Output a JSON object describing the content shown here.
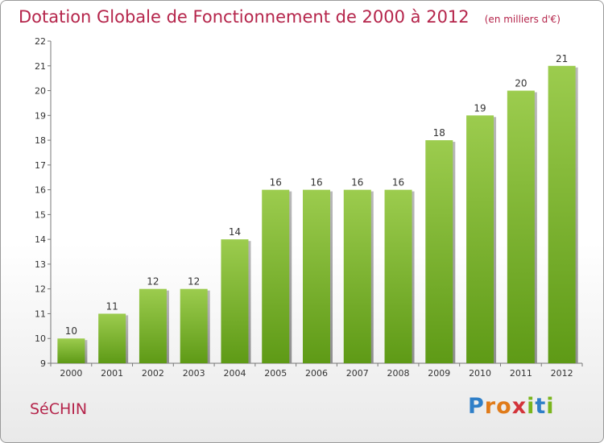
{
  "title": "Dotation Globale de Fonctionnement de 2000 à 2012",
  "unit": "(en milliers d'€)",
  "commune": "SéCHIN",
  "logo": {
    "letters": [
      "P",
      "r",
      "o",
      "x",
      "i",
      "t",
      "i"
    ],
    "colors": [
      "#2f7fc8",
      "#e07b1a",
      "#e07b1a",
      "#d3333a",
      "#7ab51d",
      "#2f7fc8",
      "#7ab51d"
    ]
  },
  "colors": {
    "bar_top": "#9ccc4e",
    "bar_bottom": "#5e9a16",
    "title": "#b5254b"
  },
  "chart_data": {
    "type": "bar",
    "categories": [
      "2000",
      "2001",
      "2002",
      "2003",
      "2004",
      "2005",
      "2006",
      "2007",
      "2008",
      "2009",
      "2010",
      "2011",
      "2012"
    ],
    "values": [
      10,
      11,
      12,
      12,
      14,
      16,
      16,
      16,
      16,
      18,
      19,
      20,
      21
    ],
    "ylim": [
      9,
      22
    ],
    "yticks": [
      9,
      10,
      11,
      12,
      13,
      14,
      15,
      16,
      17,
      18,
      19,
      20,
      21,
      22
    ],
    "grid": false,
    "legend": "none"
  }
}
